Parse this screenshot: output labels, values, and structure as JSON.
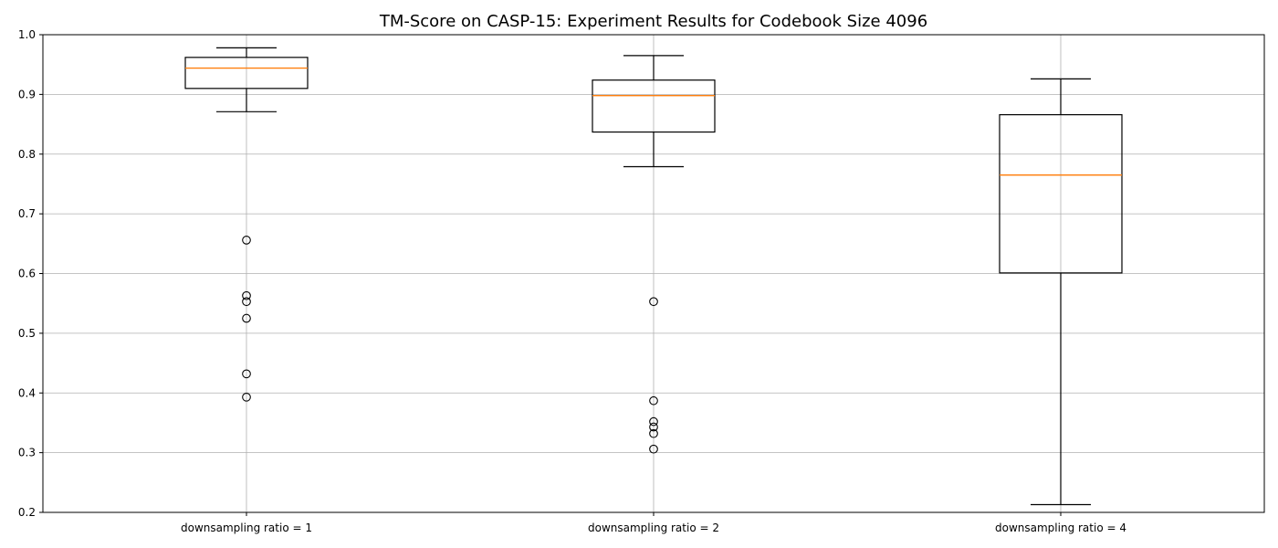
{
  "chart_data": {
    "type": "boxplot",
    "title": "TM-Score on CASP-15: Experiment Results for Codebook Size 4096",
    "xlabel": "",
    "ylabel": "",
    "ylim": [
      0.2,
      1.0
    ],
    "yticks": [
      0.2,
      0.3,
      0.4,
      0.5,
      0.6,
      0.7,
      0.8,
      0.9,
      1.0
    ],
    "ytick_labels": [
      "0.2",
      "0.3",
      "0.4",
      "0.5",
      "0.6",
      "0.7",
      "0.8",
      "0.9",
      "1.0"
    ],
    "grid": true,
    "categories": [
      "downsampling ratio = 1",
      "downsampling ratio = 2",
      "downsampling ratio = 4"
    ],
    "boxes": [
      {
        "label": "downsampling ratio = 1",
        "whisker_low": 0.871,
        "q1": 0.91,
        "median": 0.944,
        "q3": 0.962,
        "whisker_high": 0.978,
        "fliers": [
          0.656,
          0.563,
          0.553,
          0.525,
          0.432,
          0.393
        ]
      },
      {
        "label": "downsampling ratio = 2",
        "whisker_low": 0.779,
        "q1": 0.837,
        "median": 0.898,
        "q3": 0.924,
        "whisker_high": 0.965,
        "fliers": [
          0.553,
          0.387,
          0.352,
          0.343,
          0.332,
          0.306
        ]
      },
      {
        "label": "downsampling ratio = 4",
        "whisker_low": 0.213,
        "q1": 0.601,
        "median": 0.765,
        "q3": 0.866,
        "whisker_high": 0.926,
        "fliers": []
      }
    ],
    "colors": {
      "median": "#ff7f0e",
      "box": "#000000",
      "grid": "#b0b0b0"
    }
  }
}
